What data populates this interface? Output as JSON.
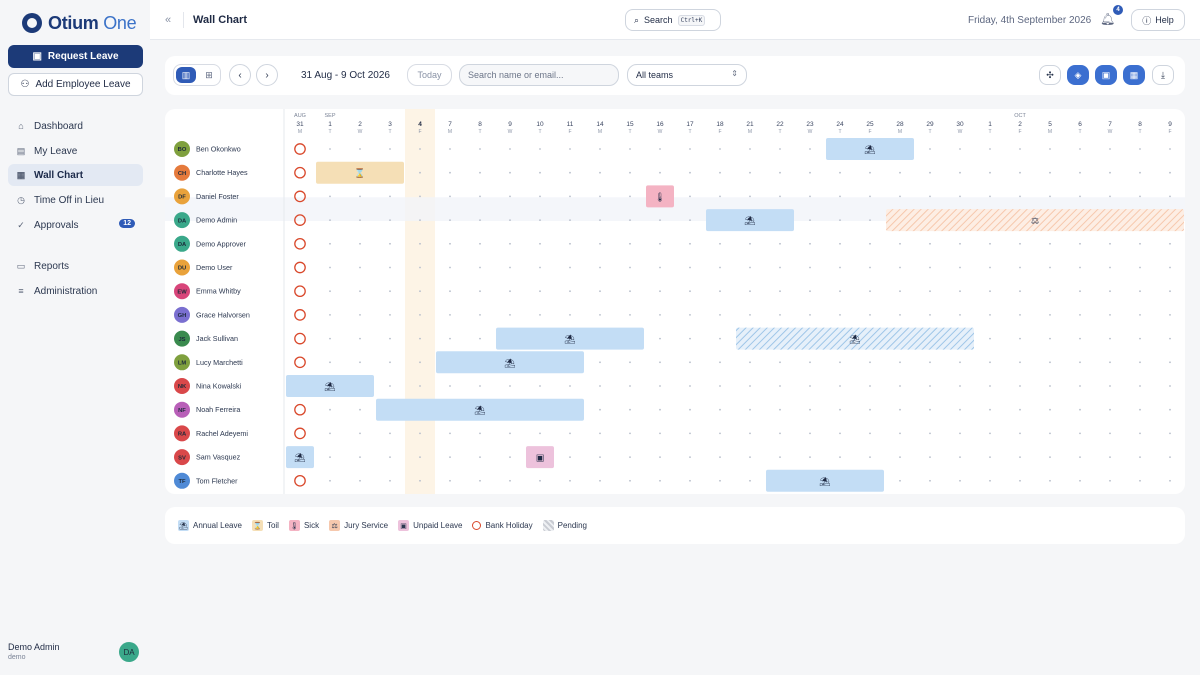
{
  "app": {
    "brand_main": "Otium",
    "brand_light": " One"
  },
  "sidebar": {
    "request_leave": "Request Leave",
    "add_employee_leave": "Add Employee Leave",
    "items": [
      {
        "label": "Dashboard",
        "icon": "grid-icon"
      },
      {
        "label": "My Leave",
        "icon": "calendar-icon"
      },
      {
        "label": "Wall Chart",
        "icon": "calendar-grid-icon",
        "active": true
      },
      {
        "label": "Time Off in Lieu",
        "icon": "clock-icon"
      },
      {
        "label": "Approvals",
        "icon": "check-circle-icon",
        "badge": "12"
      },
      {
        "label": "Reports",
        "icon": "document-icon"
      },
      {
        "label": "Administration",
        "icon": "sliders-icon"
      }
    ],
    "user": {
      "name": "Demo Admin",
      "sub": "demo",
      "initials": "DA"
    }
  },
  "header": {
    "title": "Wall Chart",
    "search_label": "Search",
    "search_shortcut": "Ctrl+K",
    "date": "Friday, 4th September 2026",
    "notifications": "4",
    "help": "Help"
  },
  "toolbar": {
    "range": "31 Aug - 9 Oct 2026",
    "today": "Today",
    "search_placeholder": "Search name or email...",
    "team": "All teams"
  },
  "colors": {
    "annual": "#c3ddf5",
    "toil": "#f5dfb6",
    "sick": "#f4b3c3",
    "jury": "#f6c8ad",
    "unpaid": "#edc2dc",
    "bank": "#d9482b",
    "pending": "#9fc6e8",
    "today_col": "#fdf4e6",
    "accent": "#2f5bb7"
  },
  "wallchart": {
    "months": [
      {
        "label": "AUG",
        "col": 0
      },
      {
        "label": "SEP",
        "col": 1
      },
      {
        "label": "OCT",
        "col": 24
      }
    ],
    "days": [
      {
        "n": "31",
        "d": "M"
      },
      {
        "n": "1",
        "d": "T"
      },
      {
        "n": "2",
        "d": "W"
      },
      {
        "n": "3",
        "d": "T"
      },
      {
        "n": "4",
        "d": "F"
      },
      {
        "n": "7",
        "d": "M"
      },
      {
        "n": "8",
        "d": "T"
      },
      {
        "n": "9",
        "d": "W"
      },
      {
        "n": "10",
        "d": "T"
      },
      {
        "n": "11",
        "d": "F"
      },
      {
        "n": "14",
        "d": "M"
      },
      {
        "n": "15",
        "d": "T"
      },
      {
        "n": "16",
        "d": "W"
      },
      {
        "n": "17",
        "d": "T"
      },
      {
        "n": "18",
        "d": "F"
      },
      {
        "n": "21",
        "d": "M"
      },
      {
        "n": "22",
        "d": "T"
      },
      {
        "n": "23",
        "d": "W"
      },
      {
        "n": "24",
        "d": "T"
      },
      {
        "n": "25",
        "d": "F"
      },
      {
        "n": "28",
        "d": "M"
      },
      {
        "n": "29",
        "d": "T"
      },
      {
        "n": "30",
        "d": "W"
      },
      {
        "n": "1",
        "d": "T"
      },
      {
        "n": "2",
        "d": "F"
      },
      {
        "n": "5",
        "d": "M"
      },
      {
        "n": "6",
        "d": "T"
      },
      {
        "n": "7",
        "d": "W"
      },
      {
        "n": "8",
        "d": "T"
      },
      {
        "n": "9",
        "d": "F"
      }
    ],
    "today_col": 4,
    "bank_holiday_col": 0,
    "highlight_row": 3,
    "employees": [
      {
        "initials": "BO",
        "name": "Ben Okonkwo",
        "color": "#7fa03e"
      },
      {
        "initials": "CH",
        "name": "Charlotte Hayes",
        "color": "#e57a3c"
      },
      {
        "initials": "DF",
        "name": "Daniel Foster",
        "color": "#e9a23b"
      },
      {
        "initials": "DA",
        "name": "Demo Admin",
        "color": "#3aa88a"
      },
      {
        "initials": "DA",
        "name": "Demo Approver",
        "color": "#3aa88a"
      },
      {
        "initials": "DU",
        "name": "Demo User",
        "color": "#e9a23b"
      },
      {
        "initials": "EW",
        "name": "Emma Whitby",
        "color": "#d8457a"
      },
      {
        "initials": "GH",
        "name": "Grace Halvorsen",
        "color": "#7a6fd0"
      },
      {
        "initials": "JS",
        "name": "Jack Sullivan",
        "color": "#3a8a4e"
      },
      {
        "initials": "LM",
        "name": "Lucy Marchetti",
        "color": "#7fa03e"
      },
      {
        "initials": "NK",
        "name": "Nina Kowalski",
        "color": "#d9484a"
      },
      {
        "initials": "NF",
        "name": "Noah Ferreira",
        "color": "#b85fb8"
      },
      {
        "initials": "RA",
        "name": "Rachel Adeyemi",
        "color": "#d9484a"
      },
      {
        "initials": "SV",
        "name": "Sam Vasquez",
        "color": "#d9484a"
      },
      {
        "initials": "TF",
        "name": "Tom Fletcher",
        "color": "#4f8ad6"
      }
    ],
    "bars": [
      {
        "row": 0,
        "start": 18,
        "end": 20,
        "type": "annual"
      },
      {
        "row": 1,
        "start": 1,
        "end": 3,
        "type": "toil"
      },
      {
        "row": 2,
        "start": 12,
        "end": 12,
        "type": "sick"
      },
      {
        "row": 3,
        "start": 14,
        "end": 16,
        "type": "annual"
      },
      {
        "row": 3,
        "start": 20,
        "end": 29,
        "type": "jury",
        "pending": true
      },
      {
        "row": 8,
        "start": 7,
        "end": 11,
        "type": "annual"
      },
      {
        "row": 8,
        "start": 15,
        "end": 22,
        "type": "annual",
        "pending": true
      },
      {
        "row": 9,
        "start": 5,
        "end": 9,
        "type": "annual"
      },
      {
        "row": 10,
        "start": 0,
        "end": 2,
        "type": "annual"
      },
      {
        "row": 11,
        "start": 3,
        "end": 9,
        "type": "annual"
      },
      {
        "row": 13,
        "start": 0,
        "end": 0,
        "type": "annual"
      },
      {
        "row": 13,
        "start": 8,
        "end": 8,
        "type": "unpaid"
      },
      {
        "row": 14,
        "start": 16,
        "end": 19,
        "type": "annual"
      }
    ]
  },
  "legend": [
    {
      "key": "annual",
      "label": "Annual Leave",
      "icon": "palm-tree-icon"
    },
    {
      "key": "toil",
      "label": "Toil",
      "icon": "hourglass-icon"
    },
    {
      "key": "sick",
      "label": "Sick",
      "icon": "thermometer-icon"
    },
    {
      "key": "jury",
      "label": "Jury Service",
      "icon": "scales-icon"
    },
    {
      "key": "unpaid",
      "label": "Unpaid Leave",
      "icon": "calendar-x-icon"
    },
    {
      "key": "bank",
      "label": "Bank Holiday",
      "icon": "circle-icon"
    },
    {
      "key": "pending",
      "label": "Pending",
      "icon": "hatch-icon"
    }
  ]
}
